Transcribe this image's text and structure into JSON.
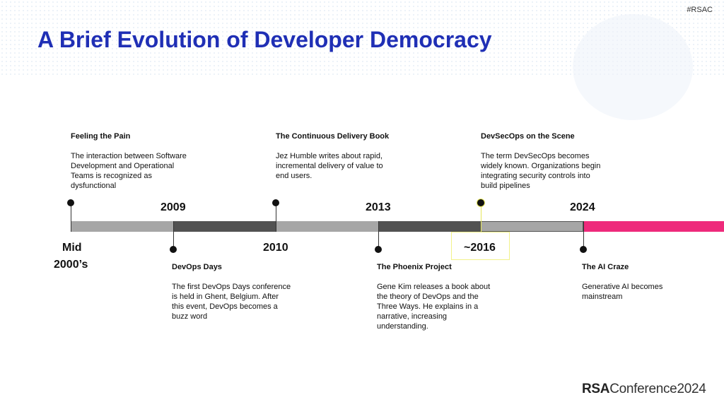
{
  "tag": "#RSAC",
  "title": "A Brief Evolution of Developer Democracy",
  "years": {
    "mid": "Mid",
    "mid2": "2000’s",
    "y2009": "2009",
    "y2010": "2010",
    "y2013": "2013",
    "y2016": "~2016",
    "y2024": "2024"
  },
  "events": [
    {
      "title": "Feeling the Pain",
      "text": "The interaction between Software Development and Operational Teams is recognized as dysfunctional"
    },
    {
      "title": "DevOps Days",
      "text": "The first DevOps Days conference is held in Ghent, Belgium. After this event, DevOps becomes a buzz word"
    },
    {
      "title": "The Continuous Delivery Book",
      "text": "Jez Humble writes about rapid, incremental delivery of value to end users."
    },
    {
      "title": "The Phoenix Project",
      "text": "Gene Kim releases a book about the theory of DevOps and the Three Ways. He explains in a narrative, increasing understanding."
    },
    {
      "title": "DevSecOps on the Scene",
      "text": "The term DevSecOps becomes widely known. Organizations begin integrating security controls into build pipelines"
    },
    {
      "title": "The AI Craze",
      "text": "Generative AI becomes mainstream"
    }
  ],
  "logo": {
    "brand": "RSA",
    "rest": "Conference",
    "year": "2024"
  },
  "colors": {
    "title": "#1f2fb5",
    "light": "#a6a6a6",
    "dark": "#525252",
    "accent": "#ee2a7b",
    "highlight": "#f2f28a"
  }
}
